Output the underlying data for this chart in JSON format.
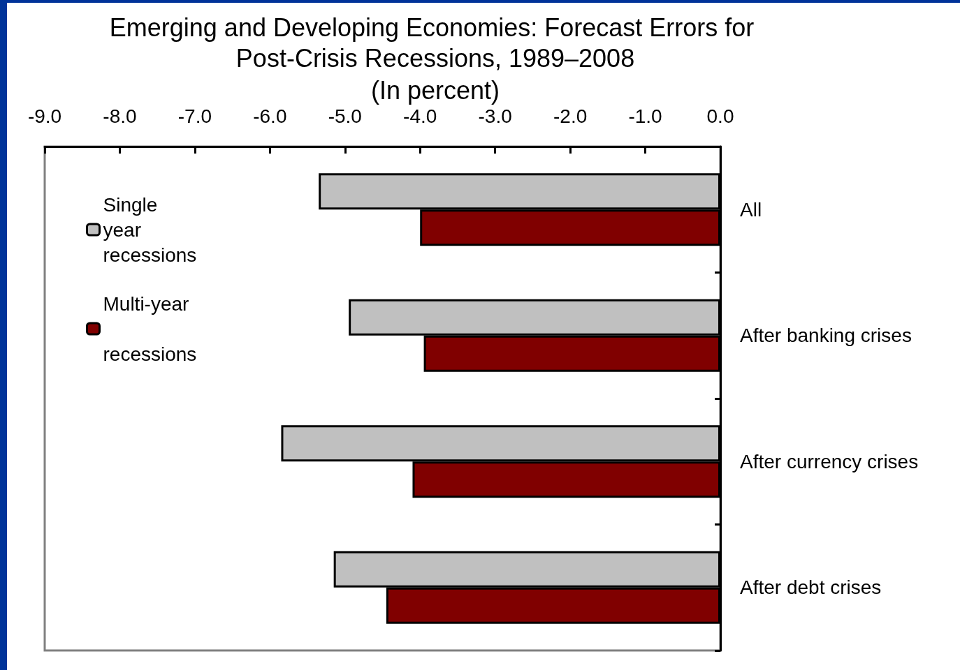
{
  "chart_data": {
    "type": "bar",
    "orientation": "horizontal",
    "title": "Emerging and Developing Economies: Forecast Errors for Post-Crisis Recessions, 1989–2008",
    "subtitle": "(In percent)",
    "categories": [
      "All",
      "After banking crises",
      "After currency crises",
      "After debt crises"
    ],
    "series": [
      {
        "name": "Single year recessions",
        "color": "#c0c0c0",
        "values": [
          -5.35,
          -4.95,
          -5.85,
          -5.15
        ]
      },
      {
        "name": "Multi-year recessions",
        "color": "#800000",
        "values": [
          -4.0,
          -3.95,
          -4.1,
          -4.45
        ]
      }
    ],
    "xlim": [
      -9,
      0
    ],
    "xticks": [
      {
        "value": -9,
        "label": "-9.0"
      },
      {
        "value": -8,
        "label": "-8.0"
      },
      {
        "value": -7,
        "label": "-7.0"
      },
      {
        "value": -6,
        "label": "-6.0"
      },
      {
        "value": -5,
        "label": "-5.0"
      },
      {
        "value": -4,
        "label": "-4.0"
      },
      {
        "value": -3,
        "label": "-3.0"
      },
      {
        "value": -2,
        "label": "-2.0"
      },
      {
        "value": -1,
        "label": "-1.0"
      },
      {
        "value": 0,
        "label": "0.0"
      }
    ],
    "grid": false,
    "legend": "top left"
  }
}
